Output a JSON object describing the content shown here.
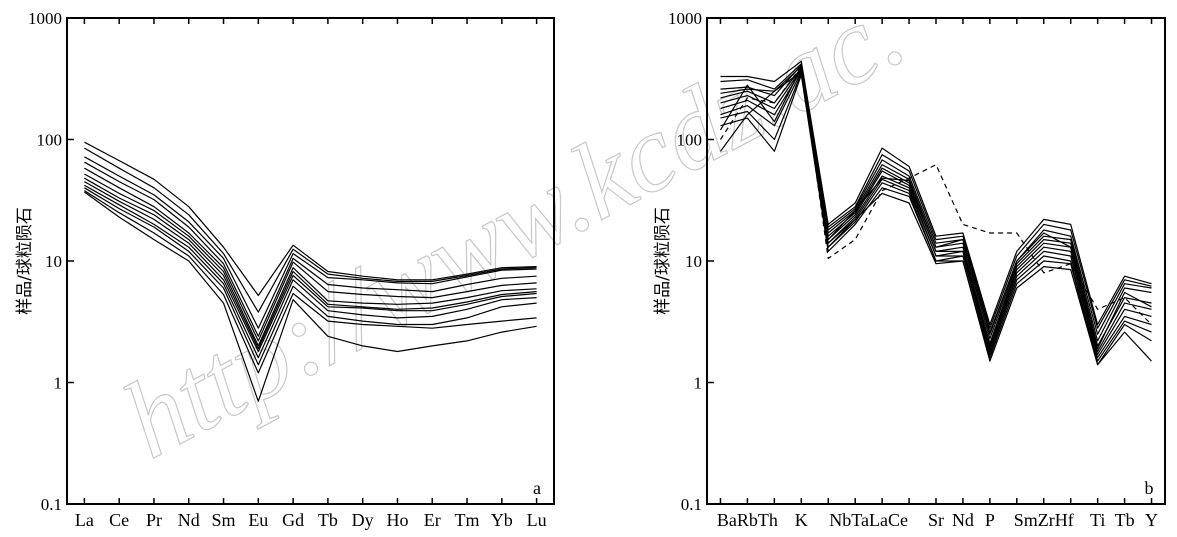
{
  "watermark": "http://www.kcdz.ac.",
  "chart_data": [
    {
      "type": "line",
      "panel_label": "a",
      "ylabel": "样品/球粒陨石",
      "yscale": "log",
      "ylim": [
        0.1,
        1000
      ],
      "yticks": [
        "0.1",
        "1",
        "10",
        "100",
        "1000"
      ],
      "categories": [
        "La",
        "Ce",
        "Pr",
        "Nd",
        "Sm",
        "Eu",
        "Gd",
        "Tb",
        "Dy",
        "Ho",
        "Er",
        "Tm",
        "Yb",
        "Lu"
      ],
      "label_categories": [
        "La",
        "Ce",
        "Pr",
        "Nd",
        "Sm",
        "Eu",
        "Gd",
        "Tb",
        "Dy",
        "Ho",
        "Er",
        "Tm",
        "Yb",
        "Lu"
      ],
      "series": [
        {
          "values": [
            95,
            67,
            47,
            28,
            13,
            5.2,
            13.5,
            8.2,
            7.5,
            7.0,
            7.0,
            7.8,
            8.8,
            9.0
          ]
        },
        {
          "values": [
            85,
            58,
            40,
            24,
            11.5,
            3.8,
            12.5,
            7.8,
            7.2,
            6.8,
            6.8,
            7.6,
            8.6,
            8.8
          ]
        },
        {
          "values": [
            72,
            50,
            35,
            21,
            10.5,
            2.8,
            11.5,
            7.3,
            7.0,
            6.6,
            6.5,
            7.4,
            8.4,
            8.6
          ]
        },
        {
          "values": [
            65,
            45,
            32,
            19,
            9.5,
            2.4,
            10.5,
            6.4,
            6.0,
            5.8,
            5.6,
            6.4,
            7.2,
            7.5
          ]
        },
        {
          "values": [
            58,
            40,
            28,
            17,
            8.8,
            2.2,
            9.8,
            5.6,
            5.3,
            5.1,
            5.0,
            5.6,
            6.3,
            6.6
          ]
        },
        {
          "values": [
            52,
            36,
            26,
            16,
            8.2,
            2.0,
            8.8,
            4.7,
            4.5,
            4.4,
            4.5,
            5.0,
            5.7,
            5.9
          ]
        },
        {
          "values": [
            48,
            33,
            24,
            15,
            7.6,
            1.9,
            8.2,
            4.4,
            4.2,
            4.0,
            4.1,
            4.6,
            5.3,
            5.6
          ]
        },
        {
          "values": [
            45,
            31,
            22,
            14,
            7.0,
            1.8,
            7.6,
            4.2,
            4.1,
            3.9,
            3.9,
            4.4,
            5.1,
            5.4
          ]
        },
        {
          "values": [
            42,
            29,
            20,
            13,
            6.5,
            1.6,
            7.0,
            3.9,
            3.6,
            3.4,
            3.5,
            4.0,
            4.8,
            5.0
          ]
        },
        {
          "values": [
            40,
            27,
            19,
            12,
            6.0,
            1.4,
            6.2,
            3.5,
            3.2,
            3.0,
            3.0,
            3.4,
            4.2,
            4.5
          ]
        },
        {
          "values": [
            38,
            25,
            17,
            11,
            5.3,
            1.2,
            5.4,
            3.2,
            3.0,
            2.9,
            2.8,
            3.0,
            3.2,
            3.4
          ]
        },
        {
          "values": [
            37,
            23,
            15,
            10,
            4.5,
            0.7,
            4.8,
            2.4,
            2.0,
            1.8,
            2.0,
            2.2,
            2.6,
            2.9
          ]
        }
      ]
    },
    {
      "type": "line",
      "panel_label": "b",
      "ylabel": "样品/球粒陨石",
      "yscale": "log",
      "ylim": [
        0.1,
        1000
      ],
      "yticks": [
        "0.1",
        "1",
        "10",
        "100",
        "1000"
      ],
      "categories": [
        "Ba",
        "Rb",
        "Th",
        "K",
        "Nb",
        "Ta",
        "La",
        "Ce",
        "Sr",
        "Nd",
        "P",
        "Sm",
        "Zr",
        "Hf",
        "Ti",
        "Tb",
        "Y"
      ],
      "label_categories": [
        "BaRbTh",
        "K",
        "NbTaLaCe",
        "Sr",
        "Nd",
        "P",
        "SmZrHf",
        "Ti",
        "Tb",
        "Y"
      ],
      "series": [
        {
          "values": [
            330,
            330,
            300,
            440,
            20,
            30,
            85,
            60,
            16,
            17,
            3.0,
            12,
            22,
            20,
            3.0,
            7.5,
            6.5
          ]
        },
        {
          "values": [
            300,
            310,
            260,
            420,
            19,
            28,
            75,
            55,
            15,
            16,
            2.8,
            11,
            20,
            18,
            2.8,
            7.0,
            6.2
          ]
        },
        {
          "values": [
            260,
            270,
            230,
            410,
            18,
            27,
            68,
            50,
            14,
            15,
            2.5,
            10,
            18,
            16,
            2.5,
            6.5,
            6.0
          ]
        },
        {
          "values": [
            240,
            260,
            250,
            400,
            17,
            26,
            62,
            47,
            13,
            14,
            2.3,
            9.5,
            16,
            15,
            2.2,
            6.0,
            5.5
          ]
        },
        {
          "values": [
            220,
            250,
            200,
            390,
            16,
            25,
            58,
            44,
            12,
            13,
            2.1,
            9.0,
            15,
            14,
            2.0,
            5.0,
            4.5
          ]
        },
        {
          "values": [
            200,
            230,
            180,
            380,
            15,
            24,
            55,
            42,
            12,
            12,
            2.0,
            8.5,
            14,
            13,
            1.8,
            4.5,
            4.0
          ]
        },
        {
          "values": [
            180,
            210,
            160,
            370,
            14,
            23,
            50,
            40,
            11,
            12,
            1.9,
            8.0,
            13,
            12,
            1.7,
            4.0,
            3.5
          ]
        },
        {
          "values": [
            160,
            190,
            130,
            360,
            14,
            22,
            47,
            38,
            11,
            11,
            1.8,
            7.5,
            12,
            11,
            1.6,
            3.5,
            3.0
          ]
        },
        {
          "values": [
            150,
            170,
            100,
            350,
            13,
            21,
            44,
            36,
            10,
            11,
            1.7,
            7.0,
            11,
            10,
            1.5,
            3.2,
            2.6
          ]
        },
        {
          "values": [
            130,
            150,
            80,
            340,
            12,
            20,
            40,
            34,
            10,
            10,
            1.6,
            6.5,
            10,
            9.5,
            1.4,
            3.0,
            2.2
          ]
        },
        {
          "values": [
            80,
            160,
            250,
            360,
            13,
            22,
            36,
            30,
            9.5,
            10,
            1.5,
            6.0,
            9.0,
            8.5,
            1.4,
            2.6,
            1.5
          ]
        },
        {
          "values": [
            120,
            280,
            140,
            390,
            15,
            26,
            48,
            46,
            13,
            15,
            2.6,
            10,
            17,
            13,
            1.9,
            5.5,
            4.2
          ]
        },
        {
          "values": [
            100,
            220,
            200,
            400,
            10.5,
            15,
            38,
            48,
            62,
            20,
            17,
            17,
            8.0,
            9.5,
            4.0,
            5.0,
            3.0
          ],
          "style": "dashed"
        }
      ]
    }
  ]
}
